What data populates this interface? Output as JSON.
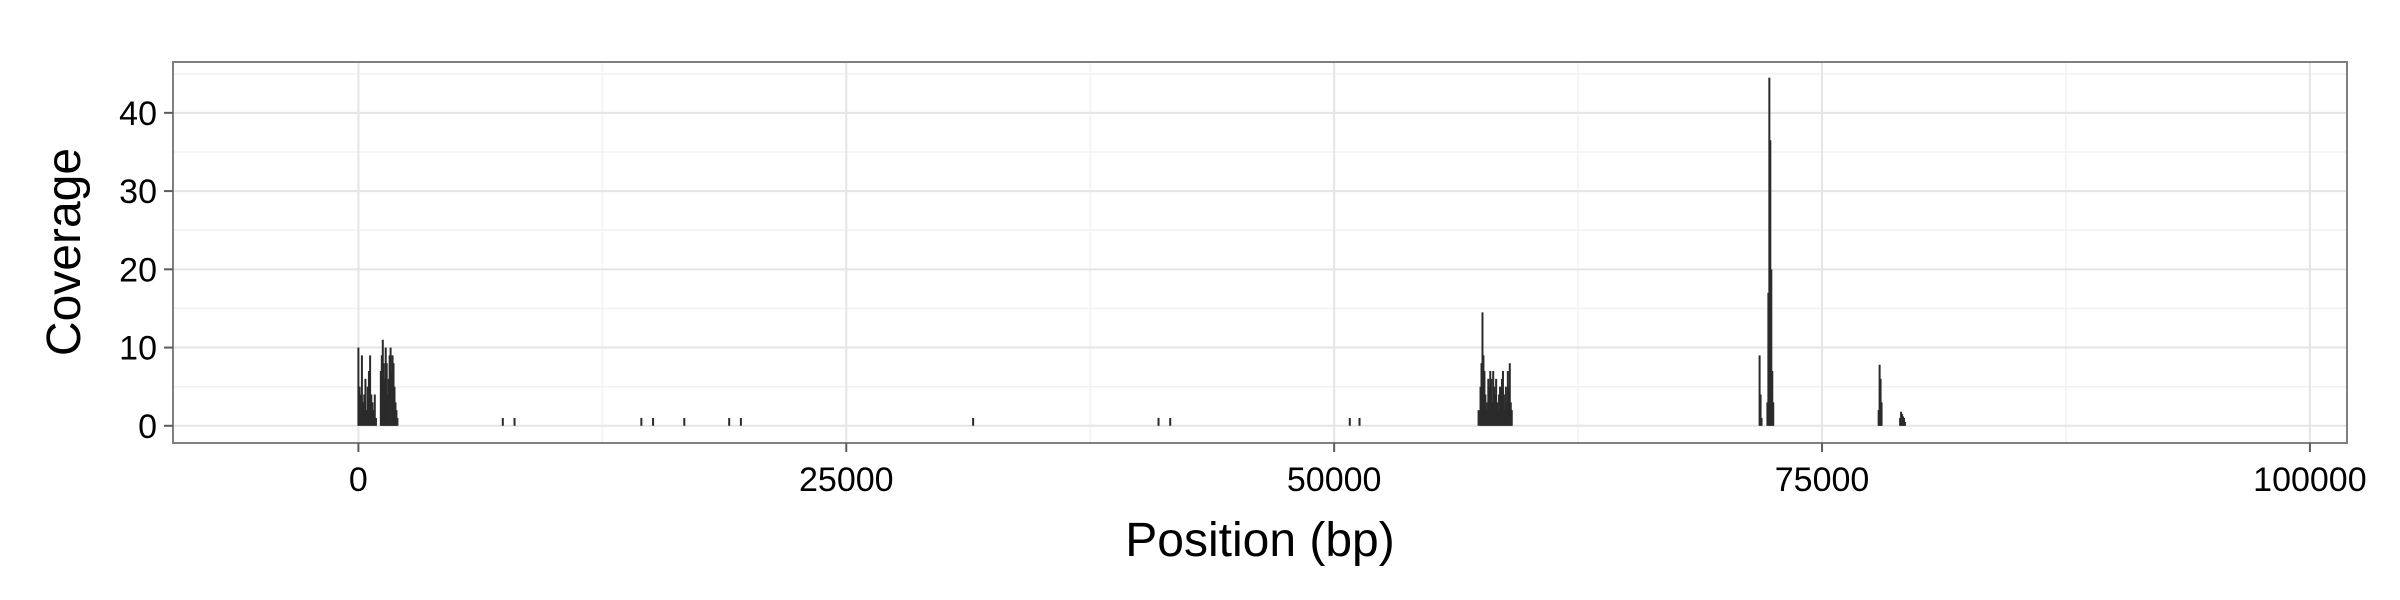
{
  "chart_data": {
    "type": "area",
    "xlabel": "Position (bp)",
    "ylabel": "Coverage",
    "xlim": [
      -9500,
      101900
    ],
    "ylim": [
      -2.2,
      46.5
    ],
    "x_ticks": [
      0,
      25000,
      50000,
      75000,
      100000
    ],
    "x_tick_labels": [
      "0",
      "25000",
      "50000",
      "75000",
      "100000"
    ],
    "y_ticks": [
      0,
      10,
      20,
      30,
      40
    ],
    "y_tick_labels": [
      "0",
      "10",
      "20",
      "30",
      "40"
    ],
    "grid": true,
    "legend": "none",
    "colors": {
      "bars": "#2b2b2b",
      "panel_border": "#7f7f7f",
      "major_grid": "#e5e5e5",
      "minor_grid": "#f2f2f2",
      "axis_ticks": "#5c5c5c"
    },
    "series": [
      {
        "x": [
          0,
          60,
          120,
          180,
          240,
          300,
          360,
          420,
          480,
          540,
          600,
          660,
          720,
          780,
          840,
          900,
          1150,
          1200,
          1250,
          1300,
          1350,
          1400,
          1450,
          1500,
          1550,
          1600,
          1650,
          1700,
          1750,
          1800,
          1850,
          1900,
          1950,
          2000,
          7400,
          8000,
          14500,
          15100,
          16700,
          19000,
          19600,
          31500,
          41000,
          41600,
          50800,
          51300,
          57400,
          57500,
          57550,
          57600,
          57650,
          57700,
          57750,
          57800,
          57850,
          57900,
          57950,
          58000,
          58050,
          58100,
          58150,
          58200,
          58250,
          58300,
          58350,
          58400,
          58450,
          58500,
          58550,
          58600,
          58650,
          58700,
          58750,
          58800,
          58850,
          58900,
          58950,
          59000,
          59050,
          59100,
          71800,
          71850,
          71900,
          72200,
          72250,
          72300,
          72350,
          72400,
          72450,
          72500,
          77900,
          77950,
          78000,
          78050,
          79000,
          79050,
          79100,
          79150,
          79200,
          79250
        ],
        "y": [
          10,
          5,
          4,
          9,
          3,
          4,
          6,
          2,
          5,
          7,
          9,
          4,
          3,
          2,
          4,
          1,
          7,
          9,
          11,
          8,
          6,
          10,
          8,
          4,
          6,
          9,
          10,
          7,
          9,
          8,
          5,
          3,
          2,
          1,
          1,
          1,
          1,
          1,
          1,
          1,
          1,
          1,
          1,
          1,
          1,
          1,
          2,
          5,
          8,
          14.5,
          9,
          7,
          4,
          2,
          3,
          6,
          5,
          7,
          6,
          3,
          7,
          5,
          4,
          6,
          3,
          2,
          4,
          5,
          3,
          6,
          7,
          4,
          2,
          5,
          3,
          7,
          5,
          8,
          3,
          2,
          9,
          4,
          1,
          3,
          17,
          44.5,
          36.5,
          20,
          7,
          3,
          2,
          7.8,
          6,
          3,
          1,
          1.8,
          1.5,
          1.2,
          1,
          0.5
        ]
      }
    ]
  }
}
